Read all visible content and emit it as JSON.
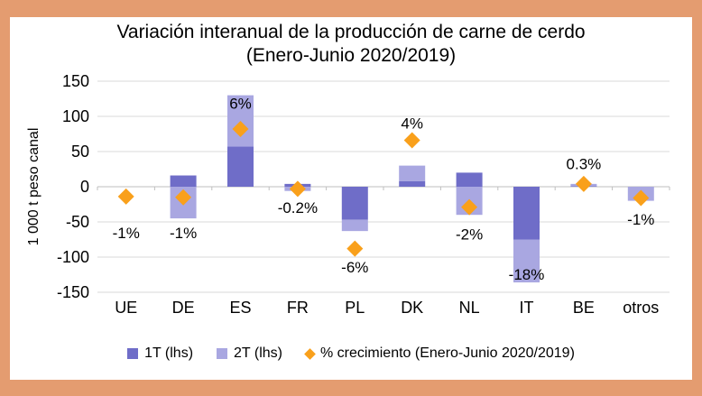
{
  "window": {
    "border_color": "#e49c70",
    "background": "#ffffff"
  },
  "title": {
    "line1": "Variación interanual de la producción de carne de cerdo",
    "line2": "(Enero-Junio 2020/2019)"
  },
  "y_axis": {
    "title": "1 000 t peso canal",
    "min": -150,
    "max": 150,
    "step": 50,
    "tick_labels": [
      "150",
      "100",
      "50",
      "0",
      "-50",
      "-100",
      "-150"
    ]
  },
  "legend": {
    "items": [
      {
        "label": "1T (lhs)",
        "marker": "square",
        "color": "#6f6dc8"
      },
      {
        "label": "2T (lhs)",
        "marker": "square",
        "color": "#a9a7e1"
      },
      {
        "label": "% crecimiento (Enero-Junio 2020/2019)",
        "marker": "diamond",
        "color": "#f9a01b"
      }
    ]
  },
  "colors": {
    "t1_bar": "#6f6dc8",
    "t2_bar": "#a9a7e1",
    "growth_marker": "#f9a01b",
    "gridline": "#d9d9d9",
    "axis_line": "#bfbfbf",
    "text": "#000000"
  },
  "chart_data": {
    "type": "bar",
    "subtype": "stacked-columns-with-percent-markers",
    "title": "Variación interanual de la producción de carne de cerdo (Enero-Junio 2020/2019)",
    "ylabel": "1 000 t peso canal",
    "ylim": [
      -150,
      150
    ],
    "grid": true,
    "legend_position": "bottom",
    "categories": [
      "UE",
      "DE",
      "ES",
      "FR",
      "PL",
      "DK",
      "NL",
      "IT",
      "BE",
      "otros"
    ],
    "series": [
      {
        "name": "1T (lhs)",
        "type": "bar",
        "values": [
          0,
          16,
          57,
          4,
          -47,
          8,
          20,
          -75,
          1,
          0
        ]
      },
      {
        "name": "2T (lhs)",
        "type": "bar",
        "values": [
          0,
          -45,
          73,
          -6,
          -16,
          22,
          -40,
          -61,
          3,
          -20
        ]
      },
      {
        "name": "% crecimiento (Enero-Junio 2020/2019)",
        "type": "scatter-diamond",
        "values_pct": [
          -1,
          -1,
          6,
          -0.2,
          -6,
          4,
          -2,
          -18,
          0.3,
          -1
        ],
        "labels": [
          "-1%",
          "-1%",
          "6%",
          "-0.2%",
          "-6%",
          "4%",
          "-2%",
          "-18%",
          "0.3%",
          "-1%"
        ],
        "marker_lhs": [
          -14,
          -15,
          82,
          -3,
          -88,
          66,
          -29,
          null,
          4,
          -16
        ],
        "label_lhs": [
          -66,
          -66,
          118,
          -30,
          -115,
          90,
          -68,
          -125,
          32,
          -47
        ],
        "note": "markers plotted on hidden right-hand %-scale; IT marker (-18%) falls outside the axis and is not drawn"
      }
    ]
  }
}
